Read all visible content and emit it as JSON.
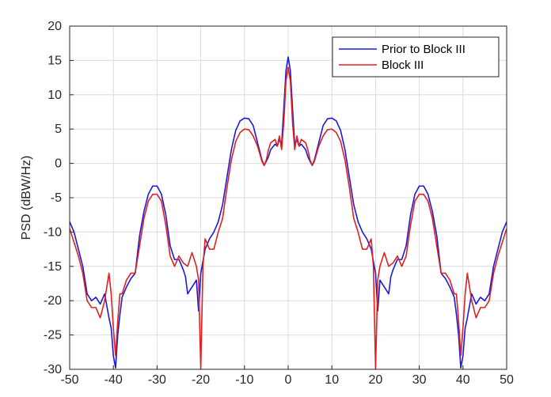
{
  "chart_data": {
    "type": "line",
    "title": "",
    "xlabel": "",
    "ylabel": "PSD (dBW/Hz)",
    "xlim": [
      -50,
      50
    ],
    "ylim": [
      -30,
      20
    ],
    "xticks": [
      -50,
      -40,
      -30,
      -20,
      -10,
      0,
      10,
      20,
      30,
      40,
      50
    ],
    "yticks": [
      -30,
      -25,
      -20,
      -15,
      -10,
      -5,
      0,
      5,
      10,
      15,
      20
    ],
    "grid": true,
    "legend_position": "top-right",
    "series": [
      {
        "name": "Prior to Block III",
        "color": "#1a1adc",
        "half_points": [
          [
            0,
            15.5
          ],
          [
            0.5,
            13.5
          ],
          [
            1,
            8
          ],
          [
            1.5,
            2.8
          ],
          [
            2,
            3.5
          ],
          [
            2.5,
            2.5
          ],
          [
            3,
            2.8
          ],
          [
            4,
            2
          ],
          [
            4.5,
            1
          ],
          [
            5,
            0.3
          ],
          [
            5.5,
            -0.3
          ],
          [
            6,
            0.5
          ],
          [
            7,
            3
          ],
          [
            8,
            5.5
          ],
          [
            9,
            6.5
          ],
          [
            10,
            6.6
          ],
          [
            11,
            6.2
          ],
          [
            12,
            4.8
          ],
          [
            13,
            2
          ],
          [
            14,
            -2
          ],
          [
            15,
            -6
          ],
          [
            16,
            -8.5
          ],
          [
            17,
            -10
          ],
          [
            18,
            -11
          ],
          [
            19,
            -12.5
          ],
          [
            20,
            -16
          ],
          [
            20.5,
            -21.5
          ],
          [
            21,
            -17
          ],
          [
            22,
            -18
          ],
          [
            23,
            -19
          ],
          [
            23.5,
            -16.5
          ],
          [
            24,
            -15.5
          ],
          [
            25,
            -14
          ],
          [
            26,
            -14
          ],
          [
            27,
            -12
          ],
          [
            28,
            -7.5
          ],
          [
            29,
            -4.5
          ],
          [
            30,
            -3.3
          ],
          [
            31,
            -3.3
          ],
          [
            32,
            -4.5
          ],
          [
            33,
            -7
          ],
          [
            34,
            -10.5
          ],
          [
            35,
            -16
          ],
          [
            36,
            -16.8
          ],
          [
            37,
            -18
          ],
          [
            38,
            -19.5
          ],
          [
            38.5,
            -22
          ],
          [
            39,
            -25
          ],
          [
            39.5,
            -29.8
          ],
          [
            40,
            -28
          ],
          [
            40.5,
            -24
          ],
          [
            41,
            -22.5
          ],
          [
            42,
            -19
          ],
          [
            43,
            -20.5
          ],
          [
            44,
            -19.5
          ],
          [
            45,
            -20
          ],
          [
            46,
            -19
          ],
          [
            47,
            -15
          ],
          [
            48,
            -12.5
          ],
          [
            49,
            -10
          ],
          [
            50,
            -8.5
          ]
        ]
      },
      {
        "name": "Block III",
        "color": "#e02020",
        "half_points": [
          [
            0,
            14
          ],
          [
            0.5,
            12
          ],
          [
            1,
            6
          ],
          [
            1.5,
            2
          ],
          [
            2,
            4
          ],
          [
            2.5,
            2.5
          ],
          [
            3,
            3.5
          ],
          [
            4,
            3
          ],
          [
            4.5,
            2
          ],
          [
            5,
            0.5
          ],
          [
            5.5,
            -0.3
          ],
          [
            6,
            0.3
          ],
          [
            7,
            2.5
          ],
          [
            8,
            4
          ],
          [
            9,
            4.9
          ],
          [
            10,
            5
          ],
          [
            11,
            4.5
          ],
          [
            12,
            3.2
          ],
          [
            13,
            0.5
          ],
          [
            14,
            -3.5
          ],
          [
            15,
            -8
          ],
          [
            16,
            -10
          ],
          [
            17,
            -12.5
          ],
          [
            18,
            -12.5
          ],
          [
            19,
            -11
          ],
          [
            19.5,
            -15
          ],
          [
            20,
            -30
          ],
          [
            20.5,
            -17
          ],
          [
            21,
            -15
          ],
          [
            22,
            -13
          ],
          [
            23,
            -15
          ],
          [
            24,
            -14.5
          ],
          [
            25,
            -13.5
          ],
          [
            26,
            -15
          ],
          [
            27,
            -13.5
          ],
          [
            28,
            -9
          ],
          [
            29,
            -5.5
          ],
          [
            30,
            -4.5
          ],
          [
            31,
            -4.5
          ],
          [
            32,
            -5.5
          ],
          [
            33,
            -8
          ],
          [
            34,
            -12
          ],
          [
            35,
            -16
          ],
          [
            36,
            -16
          ],
          [
            37,
            -17
          ],
          [
            38,
            -19
          ],
          [
            38.5,
            -19
          ],
          [
            39,
            -23
          ],
          [
            39.5,
            -28
          ],
          [
            40,
            -24
          ],
          [
            40.5,
            -19
          ],
          [
            41,
            -16
          ],
          [
            42,
            -20
          ],
          [
            43,
            -22.5
          ],
          [
            44,
            -21
          ],
          [
            45,
            -21
          ],
          [
            46,
            -20
          ],
          [
            47,
            -16
          ],
          [
            48,
            -13.5
          ],
          [
            49,
            -11.5
          ],
          [
            50,
            -9.5
          ]
        ]
      }
    ]
  }
}
